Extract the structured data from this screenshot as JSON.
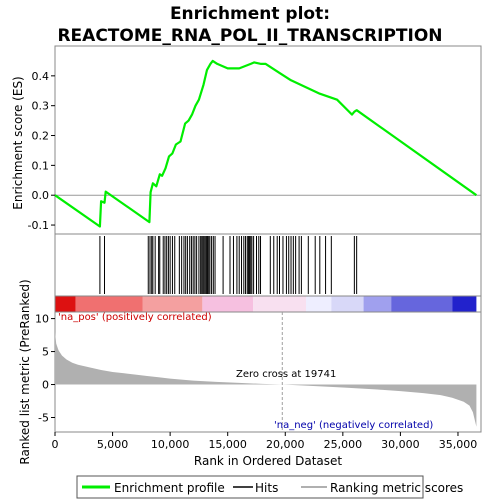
{
  "chart_data": {
    "title_line1": "Enrichment plot:",
    "title_line2": "REACTOME_RNA_POL_II_TRANSCRIPTION",
    "colors": {
      "es_line": "#00ee00",
      "hits": "#000000",
      "metric_fill": "#b0b0b0",
      "zero_cross_line": "#a0a0a0",
      "pos_label": "#cc0000",
      "neg_label": "#0000aa"
    },
    "es_panel": {
      "type": "line",
      "ylabel": "Enrichment score (ES)",
      "yticks": [
        -0.1,
        0.0,
        0.1,
        0.2,
        0.3,
        0.4
      ],
      "ytick_labels": [
        "-0.1",
        "0.0",
        "0.1",
        "0.2",
        "0.3",
        "0.4"
      ],
      "ylim": [
        -0.13,
        0.5
      ],
      "series": [
        {
          "x": [
            0,
            3900,
            4000,
            4300,
            4400,
            8200,
            8300,
            8500,
            8800,
            9100,
            9300,
            9600,
            9900,
            10200,
            10500,
            10900,
            11300,
            11600,
            11900,
            12200,
            12500,
            12900,
            13200,
            13500,
            13700,
            14100,
            15000,
            16000,
            17000,
            17300,
            17900,
            18300,
            19500,
            20500,
            23000,
            24500,
            25800,
            26000,
            26200,
            36600
          ],
          "y": [
            0.0,
            -0.105,
            -0.02,
            -0.025,
            0.012,
            -0.09,
            0.01,
            0.04,
            0.03,
            0.07,
            0.065,
            0.09,
            0.13,
            0.14,
            0.17,
            0.18,
            0.24,
            0.25,
            0.27,
            0.3,
            0.32,
            0.37,
            0.42,
            0.44,
            0.45,
            0.44,
            0.425,
            0.425,
            0.44,
            0.445,
            0.44,
            0.44,
            0.41,
            0.385,
            0.34,
            0.32,
            0.27,
            0.28,
            0.285,
            0.0
          ]
        }
      ]
    },
    "hits": [
      3900,
      4300,
      8100,
      8250,
      8400,
      8500,
      8700,
      9000,
      9100,
      9400,
      9550,
      9700,
      9850,
      10000,
      10200,
      10400,
      10800,
      11000,
      11200,
      11350,
      11500,
      11700,
      11850,
      12000,
      12150,
      12300,
      12500,
      12650,
      12750,
      12850,
      12950,
      13050,
      13150,
      13250,
      13350,
      13450,
      13600,
      13750,
      13900,
      14600,
      15200,
      15500,
      15800,
      16000,
      16200,
      16400,
      16550,
      16700,
      16800,
      16900,
      17000,
      17100,
      17250,
      17500,
      17700,
      17850,
      18700,
      19000,
      19300,
      19500,
      19800,
      20100,
      20300,
      20500,
      20700,
      20900,
      21200,
      21400,
      22000,
      22600,
      23000,
      23500,
      24000,
      26000,
      26200
    ],
    "ranking_bar": {
      "segments": [
        {
          "from": 0,
          "to": 1800,
          "color": "#dd1111"
        },
        {
          "from": 1800,
          "to": 7600,
          "color": "#f07070"
        },
        {
          "from": 7600,
          "to": 12800,
          "color": "#f4a0a0"
        },
        {
          "from": 12800,
          "to": 17200,
          "color": "#f6c0e0"
        },
        {
          "from": 17200,
          "to": 21800,
          "color": "#f8e0f0"
        },
        {
          "from": 21800,
          "to": 24000,
          "color": "#eeeeff"
        },
        {
          "from": 24000,
          "to": 26800,
          "color": "#d8d8f8"
        },
        {
          "from": 26800,
          "to": 29200,
          "color": "#a0a0ee"
        },
        {
          "from": 29200,
          "to": 34500,
          "color": "#6666dd"
        },
        {
          "from": 34500,
          "to": 36600,
          "color": "#2222cc"
        }
      ]
    },
    "metric_panel": {
      "type": "area",
      "ylabel": "Ranked list metric (PreRanked)",
      "yticks": [
        -5,
        0,
        5,
        10
      ],
      "ytick_labels": [
        "-5",
        "0",
        "5",
        "10"
      ],
      "ylim": [
        -7.2,
        11
      ],
      "x": [
        0,
        100,
        300,
        600,
        1000,
        1500,
        2000,
        3000,
        4000,
        5000,
        6000,
        7000,
        8000,
        9000,
        10000,
        12000,
        14000,
        16000,
        18000,
        19741,
        22000,
        25000,
        28000,
        30000,
        32000,
        33500,
        34500,
        35500,
        36000,
        36300,
        36600
      ],
      "values": [
        8.0,
        6.2,
        5.2,
        4.4,
        3.8,
        3.3,
        3.0,
        2.6,
        2.2,
        1.9,
        1.7,
        1.5,
        1.3,
        1.1,
        0.9,
        0.6,
        0.4,
        0.25,
        0.1,
        0.0,
        -0.2,
        -0.45,
        -0.75,
        -1.0,
        -1.3,
        -1.6,
        -2.0,
        -2.6,
        -3.2,
        -4.2,
        -6.4
      ],
      "pos_label": "'na_pos' (positively correlated)",
      "neg_label": "'na_neg' (negatively correlated)",
      "zero_cross_label": "Zero cross at 19741",
      "zero_cross_x": 19741
    },
    "xaxis": {
      "label": "Rank in Ordered Dataset",
      "xlim": [
        0,
        37000
      ],
      "ticks": [
        0,
        5000,
        10000,
        15000,
        20000,
        25000,
        30000,
        35000
      ],
      "tick_labels": [
        "0",
        "5,000",
        "10,000",
        "15,000",
        "20,000",
        "25,000",
        "30,000",
        "35,000"
      ]
    },
    "legend": {
      "placement": "bottom",
      "items": [
        "Enrichment profile",
        "Hits",
        "Ranking metric scores"
      ]
    }
  }
}
